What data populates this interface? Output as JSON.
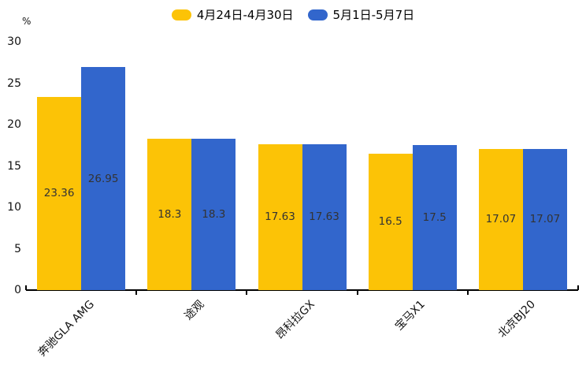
{
  "chart_data": {
    "type": "bar",
    "categories": [
      "奔驰GLA AMG",
      "途观",
      "昂科拉GX",
      "宝马X1",
      "北京BJ20"
    ],
    "series": [
      {
        "name": "4月24日-4月30日",
        "color": "#FCC306",
        "values": [
          23.36,
          18.3,
          17.63,
          16.5,
          17.07
        ]
      },
      {
        "name": "5月1日-5月7日",
        "color": "#3266CC",
        "values": [
          26.95,
          18.3,
          17.63,
          17.5,
          17.07
        ]
      }
    ],
    "title": "",
    "xlabel": "",
    "ylabel": "%",
    "ylim": [
      0,
      30
    ],
    "ytick_interval": 5,
    "grid": false,
    "legend_position": "top-center",
    "value_labels_shown": true,
    "value_label_color": "#333333",
    "axis_color": "#000000",
    "x_label_rotation_deg": 45
  }
}
